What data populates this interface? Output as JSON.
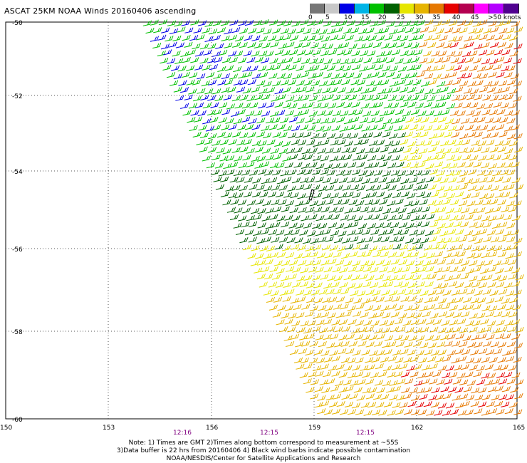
{
  "title": "ASCAT 25KM NOAA Winds 20160406 ascending",
  "legend": {
    "colors": [
      "#777777",
      "#c8c8c8",
      "#0000e6",
      "#00b3e6",
      "#00c000",
      "#006000",
      "#e6e600",
      "#e6b400",
      "#e67800",
      "#e60000",
      "#b40050",
      "#ff00ff",
      "#b400ff",
      "#500090"
    ],
    "labels": [
      "0",
      "5",
      "10",
      "15",
      "20",
      "25",
      "30",
      "35",
      "40",
      "45",
      ">50 knots"
    ],
    "unit": "knots"
  },
  "axes": {
    "lat_labels": [
      "-50",
      "-52",
      "-54",
      "-56",
      "-58",
      "-60"
    ],
    "lon_labels": [
      "150",
      "153",
      "156",
      "159",
      "162",
      "165"
    ],
    "times": [
      "12:16",
      "12:15",
      "12:15"
    ]
  },
  "notes": [
    "Note: 1) Times are GMT 2)Times along bottom correspond to measurement at ~55S",
    "3)Data buffer is 22 hrs from 20160406 4) Black wind barbs indicate possible contamination",
    "NOAA/NESDIS/Center for Satellite Applications and Research"
  ]
}
